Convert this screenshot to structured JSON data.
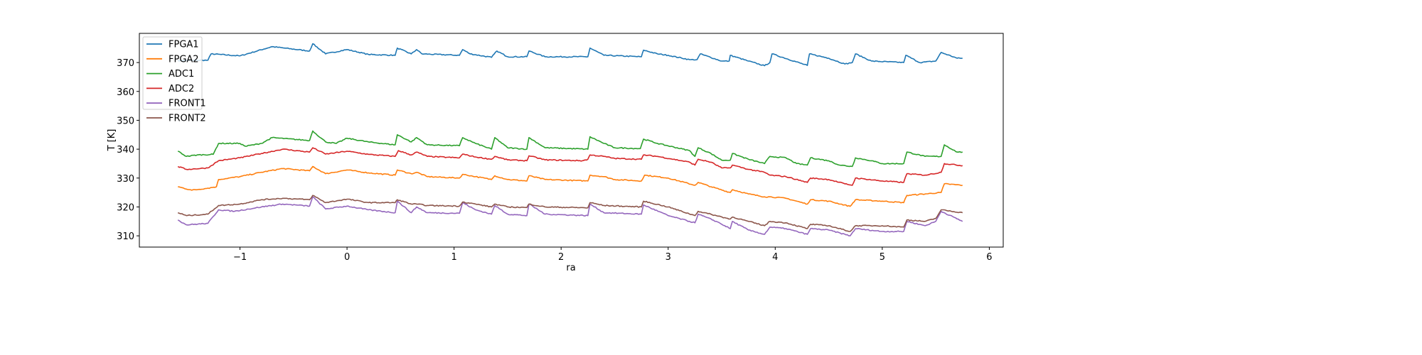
{
  "chart_data": {
    "type": "line",
    "title": "",
    "xlabel": "ra",
    "ylabel": "T [K]",
    "xlim": [
      -1.94,
      6.13
    ],
    "ylim": [
      306.1,
      380.1
    ],
    "xticks": [
      -1,
      0,
      1,
      2,
      3,
      4,
      5,
      6
    ],
    "xtick_labels": [
      "−1",
      "0",
      "1",
      "2",
      "3",
      "4",
      "5",
      "6"
    ],
    "yticks": [
      310,
      320,
      330,
      340,
      350,
      360,
      370
    ],
    "ytick_labels": [
      "310",
      "320",
      "330",
      "340",
      "350",
      "360",
      "370"
    ],
    "grid": false,
    "legend_position": "top-left",
    "series": [
      {
        "name": "FPGA1",
        "color": "#1f77b4",
        "x": [
          -1.58,
          -1.3,
          -1.27,
          -1.0,
          -0.7,
          -0.35,
          -0.32,
          -0.2,
          0,
          0.2,
          0.45,
          0.47,
          0.6,
          0.65,
          0.7,
          1.05,
          1.08,
          1.15,
          1.35,
          1.4,
          1.5,
          1.68,
          1.7,
          1.85,
          2.25,
          2.27,
          2.4,
          2.75,
          2.77,
          2.9,
          3.0,
          3.2,
          3.27,
          3.3,
          3.5,
          3.57,
          3.58,
          3.75,
          3.9,
          3.95,
          3.97,
          4.3,
          4.32,
          4.5,
          4.65,
          4.72,
          4.75,
          4.9,
          5.2,
          5.22,
          5.35,
          5.5,
          5.55,
          5.7,
          5.75
        ],
        "y": [
          370.7,
          370.8,
          373,
          372.3,
          375.5,
          374,
          376.5,
          373,
          374.5,
          372.8,
          372.5,
          375,
          373,
          374.5,
          373,
          372.5,
          374.5,
          373,
          371.8,
          374,
          372,
          372,
          374,
          372,
          372,
          375,
          372.5,
          372,
          374.3,
          373,
          372.5,
          371,
          371,
          373,
          370.5,
          370.5,
          372.5,
          370.5,
          368.9,
          370,
          373,
          369,
          373,
          371.5,
          369.5,
          370,
          373,
          370.5,
          370,
          372.5,
          370,
          370.5,
          373.5,
          371.5,
          371.5
        ]
      },
      {
        "name": "FPGA2",
        "color": "#ff7f0e",
        "x": [
          -1.58,
          -1.45,
          -1.3,
          -1.22,
          -1.2,
          -1.0,
          -0.8,
          -0.6,
          -0.35,
          -0.32,
          -0.2,
          0,
          0.2,
          0.45,
          0.47,
          0.6,
          0.65,
          0.75,
          1.05,
          1.08,
          1.2,
          1.35,
          1.38,
          1.5,
          1.68,
          1.7,
          1.85,
          2.25,
          2.27,
          2.4,
          2.5,
          2.75,
          2.78,
          3.0,
          3.25,
          3.28,
          3.4,
          3.58,
          3.6,
          3.75,
          3.9,
          3.95,
          4.1,
          4.3,
          4.33,
          4.5,
          4.7,
          4.75,
          5.0,
          5.2,
          5.23,
          5.4,
          5.55,
          5.58,
          5.75
        ],
        "y": [
          327,
          325.8,
          326.5,
          327,
          329.5,
          330.5,
          332,
          333.3,
          332.5,
          334,
          331.5,
          332.8,
          331.8,
          331,
          332.8,
          331.5,
          332,
          330.5,
          330,
          331.3,
          330.5,
          329.5,
          330.8,
          329.5,
          329,
          330.8,
          329.5,
          329,
          331,
          330.5,
          329.5,
          329,
          331,
          330,
          327.5,
          328.5,
          327,
          325,
          326,
          324.5,
          323.5,
          323.5,
          323,
          321,
          322.5,
          322,
          320.2,
          322.5,
          322,
          321.5,
          324,
          324.5,
          325,
          328,
          327.5
        ]
      },
      {
        "name": "ADC1",
        "color": "#2ca02c",
        "x": [
          -1.58,
          -1.5,
          -1.4,
          -1.25,
          -1.2,
          -1.0,
          -0.95,
          -0.8,
          -0.7,
          -0.35,
          -0.32,
          -0.2,
          -0.1,
          0,
          0.2,
          0.45,
          0.47,
          0.6,
          0.65,
          0.75,
          1.05,
          1.08,
          1.2,
          1.35,
          1.38,
          1.5,
          1.68,
          1.7,
          1.85,
          2.25,
          2.27,
          2.4,
          2.5,
          2.74,
          2.77,
          2.9,
          3.2,
          3.25,
          3.28,
          3.4,
          3.5,
          3.58,
          3.6,
          3.75,
          3.9,
          3.95,
          4.1,
          4.2,
          4.3,
          4.33,
          4.5,
          4.6,
          4.72,
          4.75,
          4.9,
          5.0,
          5.2,
          5.23,
          5.4,
          5.55,
          5.58,
          5.7,
          5.75
        ],
        "y": [
          339.3,
          337.5,
          338,
          338.2,
          342,
          342,
          341,
          342,
          344,
          343,
          346.3,
          342.5,
          342,
          343.8,
          342.5,
          341.5,
          345,
          342.5,
          344,
          341.5,
          341.2,
          344,
          342,
          340,
          344,
          340.5,
          340,
          344,
          340.5,
          340,
          344.3,
          342,
          340.5,
          340.2,
          343.5,
          342,
          339.5,
          337.5,
          340.5,
          338.5,
          336.2,
          336.2,
          338.5,
          336.5,
          335,
          337.5,
          337,
          335,
          334.5,
          337,
          336,
          334.5,
          334,
          337,
          336,
          335,
          335,
          339,
          337.5,
          337.5,
          341.5,
          339,
          339
        ]
      },
      {
        "name": "ADC2",
        "color": "#d62728",
        "x": [
          -1.58,
          -1.5,
          -1.3,
          -1.2,
          -1.0,
          -0.8,
          -0.6,
          -0.35,
          -0.32,
          -0.2,
          0,
          0.2,
          0.45,
          0.48,
          0.6,
          0.65,
          0.75,
          1.05,
          1.08,
          1.2,
          1.35,
          1.38,
          1.5,
          1.68,
          1.7,
          1.85,
          2.2,
          2.25,
          2.27,
          2.4,
          2.5,
          2.75,
          2.77,
          2.9,
          3.2,
          3.25,
          3.28,
          3.4,
          3.5,
          3.58,
          3.6,
          3.75,
          3.9,
          3.95,
          4.1,
          4.3,
          4.33,
          4.5,
          4.65,
          4.72,
          4.75,
          5.0,
          5.2,
          5.23,
          5.4,
          5.55,
          5.58,
          5.75
        ],
        "y": [
          334,
          333,
          333.5,
          336,
          337,
          338.5,
          340,
          339,
          340.5,
          338.3,
          339.3,
          338.2,
          337.5,
          339.5,
          338,
          339,
          337.5,
          337,
          338.3,
          337.3,
          336.5,
          337.5,
          336.3,
          336,
          337.7,
          336.3,
          336,
          336.5,
          338,
          337.5,
          336.8,
          336.5,
          338,
          337.5,
          335.5,
          334.5,
          336.5,
          335.5,
          333.5,
          333.5,
          334.5,
          333,
          332,
          331,
          330.5,
          328.5,
          330,
          329.5,
          328,
          327.5,
          330,
          329,
          328.5,
          331.5,
          331,
          332,
          335,
          334.3
        ]
      },
      {
        "name": "FRONT1",
        "color": "#9467bd",
        "x": [
          -1.58,
          -1.5,
          -1.3,
          -1.2,
          -1.05,
          -0.8,
          -0.6,
          -0.35,
          -0.32,
          -0.2,
          0,
          0.2,
          0.45,
          0.47,
          0.6,
          0.65,
          0.75,
          1.05,
          1.08,
          1.2,
          1.35,
          1.38,
          1.5,
          1.68,
          1.7,
          1.85,
          2.25,
          2.27,
          2.4,
          2.75,
          2.77,
          3.0,
          3.25,
          3.28,
          3.45,
          3.58,
          3.6,
          3.75,
          3.9,
          3.95,
          4.1,
          4.3,
          4.33,
          4.5,
          4.7,
          4.75,
          5.0,
          5.2,
          5.23,
          5.4,
          5.5,
          5.55,
          5.75
        ],
        "y": [
          315.5,
          313.8,
          314.3,
          319,
          318.5,
          320,
          321,
          320.3,
          323.5,
          319.3,
          320.3,
          319,
          318,
          322,
          318,
          320,
          318,
          317.8,
          321.5,
          319,
          317.5,
          320.5,
          317.5,
          317,
          321,
          317.5,
          317,
          321,
          318,
          317.5,
          320.7,
          317,
          314.5,
          317.5,
          315,
          312.5,
          315,
          312,
          310.5,
          313,
          312.5,
          310.5,
          312.5,
          312,
          310,
          312.5,
          311.5,
          311.5,
          315,
          313.5,
          315,
          318.5,
          315
        ]
      },
      {
        "name": "FRONT2",
        "color": "#8c564b",
        "x": [
          -1.58,
          -1.5,
          -1.3,
          -1.2,
          -1.0,
          -0.8,
          -0.6,
          -0.35,
          -0.32,
          -0.2,
          0,
          0.2,
          0.45,
          0.47,
          0.6,
          0.65,
          0.75,
          1.05,
          1.08,
          1.2,
          1.35,
          1.38,
          1.5,
          1.68,
          1.7,
          1.85,
          2.25,
          2.27,
          2.4,
          2.75,
          2.77,
          3.0,
          3.25,
          3.28,
          3.45,
          3.58,
          3.6,
          3.75,
          3.9,
          3.95,
          4.1,
          4.3,
          4.33,
          4.5,
          4.7,
          4.75,
          5.0,
          5.2,
          5.23,
          5.4,
          5.5,
          5.55,
          5.75
        ],
        "y": [
          318,
          317,
          317.5,
          320.5,
          321,
          322.5,
          323,
          322.5,
          324,
          321.5,
          322.7,
          321.5,
          321.5,
          322.5,
          321,
          321,
          320.5,
          320.3,
          321.7,
          321,
          320,
          321,
          320,
          319.8,
          321,
          320,
          319.7,
          321.5,
          320.5,
          320,
          322,
          320,
          317,
          318.5,
          317,
          315.8,
          316.5,
          315,
          313.5,
          315,
          314.5,
          312.5,
          314,
          313.5,
          311.5,
          313.5,
          313.5,
          313,
          315.5,
          315,
          316,
          319,
          318
        ]
      }
    ]
  }
}
